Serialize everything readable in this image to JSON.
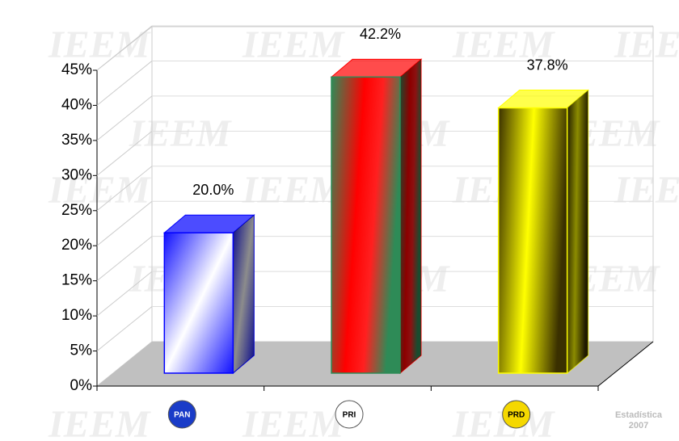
{
  "chart_data": {
    "type": "bar3d",
    "categories": [
      "PAN",
      "PRI",
      "PRD"
    ],
    "values": [
      20.0,
      42.2,
      37.8
    ],
    "value_labels": [
      "20.0%",
      "42.2%",
      "37.8%"
    ],
    "colors": [
      "#0000ff",
      "#ff0000",
      "#ffff00"
    ],
    "ylim": [
      0,
      45
    ],
    "yticks": [
      {
        "value": 0,
        "label": "0%"
      },
      {
        "value": 5,
        "label": "5%"
      },
      {
        "value": 10,
        "label": "10%"
      },
      {
        "value": 15,
        "label": "15%"
      },
      {
        "value": 20,
        "label": "20%"
      },
      {
        "value": 25,
        "label": "25%"
      },
      {
        "value": 30,
        "label": "30%"
      },
      {
        "value": 35,
        "label": "35%"
      },
      {
        "value": 40,
        "label": "40%"
      },
      {
        "value": 45,
        "label": "45%"
      }
    ],
    "grid": true,
    "watermark": "IEEM",
    "footer": [
      "Estadística",
      "2007"
    ]
  }
}
